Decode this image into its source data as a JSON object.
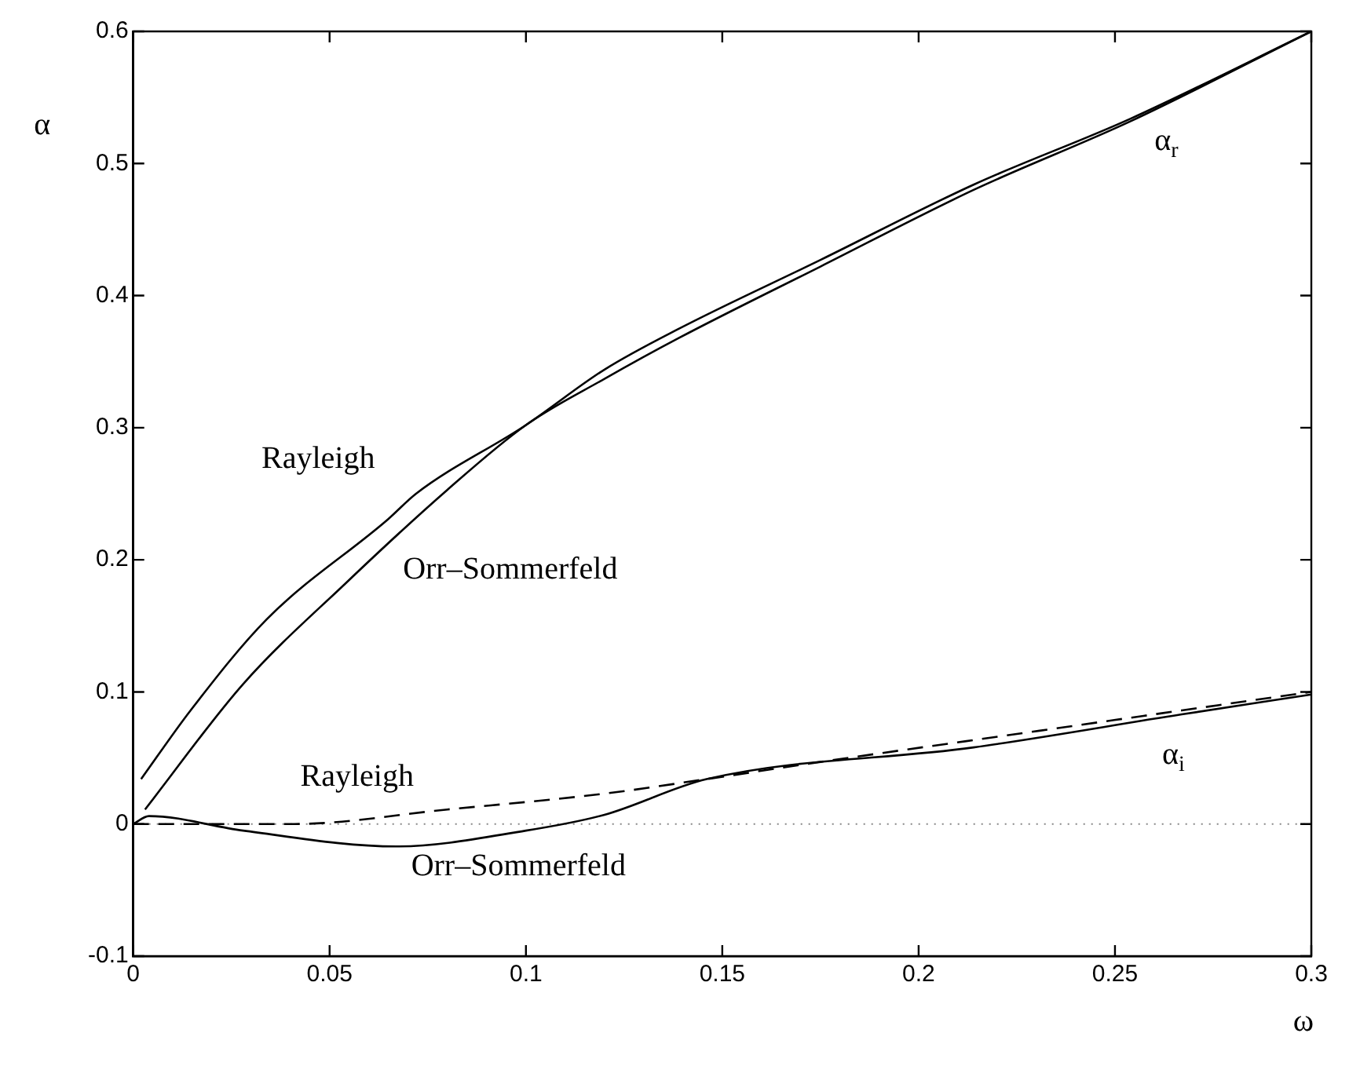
{
  "chart_data": {
    "type": "line",
    "xlabel": "ω",
    "ylabel": "α",
    "xlim": [
      0,
      0.3
    ],
    "xticks": [
      0,
      0.05,
      0.1,
      0.15,
      0.2,
      0.25,
      0.3
    ],
    "ylim": [
      -0.1,
      0.6
    ],
    "yticks": [
      -0.1,
      0,
      0.1,
      0.2,
      0.3,
      0.4,
      0.5,
      0.6
    ],
    "grid": false,
    "legend": false,
    "marker": "none",
    "series": [
      {
        "color": "#000000",
        "line_style": "solid",
        "x": [
          0.002,
          0.0146,
          0.034,
          0.065,
          0.072,
          0.1,
          0.12,
          0.139,
          0.175,
          0.214,
          0.254,
          0.3
        ],
        "values": [
          0.034,
          0.086,
          0.155,
          0.231,
          0.25,
          0.302,
          0.344,
          0.375,
          0.427,
          0.484,
          0.534,
          0.6
        ]
      },
      {
        "color": "#000000",
        "line_style": "solid",
        "x": [
          0.003,
          0.028,
          0.054,
          0.08,
          0.1,
          0.12,
          0.139,
          0.175,
          0.214,
          0.254,
          0.3
        ],
        "values": [
          0.011,
          0.106,
          0.182,
          0.253,
          0.302,
          0.337,
          0.368,
          0.422,
          0.48,
          0.532,
          0.6
        ]
      },
      {
        "color": "#000000",
        "line_style": "dashed",
        "x": [
          0,
          0.041,
          0.08,
          0.12,
          0.146,
          0.175,
          0.227,
          0.267,
          0.3
        ],
        "values": [
          0,
          0,
          0.011,
          0.023,
          0.034,
          0.047,
          0.069,
          0.086,
          0.1
        ]
      },
      {
        "color": "#000000",
        "line_style": "solid",
        "x": [
          0,
          0.004,
          0.028,
          0.067,
          0.1,
          0.12,
          0.146,
          0.214,
          0.267,
          0.3
        ],
        "values": [
          0,
          0.006,
          -0.005,
          -0.017,
          -0.005,
          0.007,
          0.034,
          0.058,
          0.083,
          0.098
        ]
      }
    ],
    "ref_lines": [
      {
        "axis": "y",
        "value": 0,
        "color": "#888888",
        "line_style": "dotted"
      }
    ],
    "annotations": [
      "Rayleigh",
      "Orr–Sommerfeld",
      "Rayleigh",
      "Orr–Sommerfeld",
      "α$_{r}$",
      "α$_{i}$"
    ]
  }
}
